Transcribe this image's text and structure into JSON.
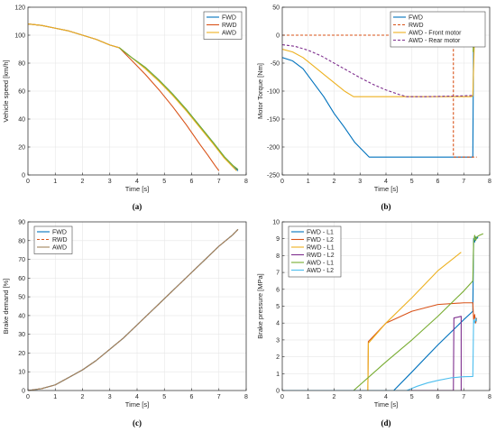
{
  "chart_data": [
    {
      "panel": "(a)",
      "type": "line",
      "xlabel": "Time [s]",
      "ylabel": "Vehicle speed [km/h]",
      "xlim": [
        0,
        8
      ],
      "ylim": [
        0,
        120
      ],
      "xticks": [
        "0",
        "1",
        "2",
        "3",
        "4",
        "5",
        "6",
        "7",
        "8"
      ],
      "yticks": [
        "0",
        "20",
        "40",
        "60",
        "80",
        "100",
        "120"
      ],
      "grid": true,
      "legend": "top-right",
      "series": [
        {
          "name": "FWD",
          "color": "#0072BD",
          "dash": false,
          "x": [
            0,
            0.5,
            1,
            1.5,
            2,
            2.5,
            3,
            3.35,
            3.8,
            4.3,
            4.8,
            5.3,
            5.8,
            6.3,
            6.8,
            7.2,
            7.5,
            7.7
          ],
          "y": [
            108,
            107,
            105,
            103,
            100,
            97,
            93,
            91,
            84,
            77,
            68,
            58,
            47,
            35,
            23,
            13,
            7,
            3
          ]
        },
        {
          "name": "RWD",
          "color": "#D95319",
          "dash": false,
          "x": [
            0,
            0.5,
            1,
            1.5,
            2,
            2.5,
            3,
            3.35,
            3.8,
            4.3,
            4.8,
            5.3,
            5.8,
            6.3,
            6.6,
            6.85,
            7.0
          ],
          "y": [
            108,
            107,
            105,
            103,
            100,
            97,
            93,
            91,
            82,
            72,
            61,
            49,
            36,
            22,
            14,
            7,
            3
          ]
        },
        {
          "name": "AWD",
          "color": "#EDB120",
          "dash": false,
          "x": [
            0,
            0.5,
            1,
            1.5,
            2,
            2.5,
            3,
            3.35,
            3.8,
            4.3,
            4.8,
            5.3,
            5.8,
            6.3,
            6.8,
            7.2,
            7.5,
            7.65
          ],
          "y": [
            108,
            107,
            105,
            103,
            100,
            97,
            93,
            91,
            84,
            76,
            67,
            57,
            46,
            34,
            22,
            12,
            6,
            3
          ]
        },
        {
          "name": "",
          "color": "#77AC30",
          "dash": false,
          "x": [
            3.35,
            3.8,
            4.3,
            4.8,
            5.3,
            5.8,
            6.3,
            6.8,
            7.2,
            7.5,
            7.7
          ],
          "y": [
            91,
            84,
            77,
            68,
            58,
            47,
            35,
            23,
            13,
            7,
            4
          ]
        }
      ]
    },
    {
      "panel": "(b)",
      "type": "line",
      "xlabel": "Time [s]",
      "ylabel": "Motor Torque [Nm]",
      "xlim": [
        0,
        8
      ],
      "ylim": [
        -250,
        50
      ],
      "xticks": [
        "0",
        "1",
        "2",
        "3",
        "4",
        "5",
        "6",
        "7",
        "8"
      ],
      "yticks": [
        "-250",
        "-200",
        "-150",
        "-100",
        "-50",
        "0",
        "50"
      ],
      "grid": true,
      "legend": "top-right",
      "series": [
        {
          "name": "FWD",
          "color": "#0072BD",
          "dash": false,
          "x": [
            0,
            0.4,
            0.8,
            1.2,
            1.6,
            2.0,
            2.4,
            2.8,
            3.35,
            4,
            5,
            6,
            7,
            7.35,
            7.38,
            7.42,
            7.46,
            7.5,
            7.55
          ],
          "y": [
            -40,
            -46,
            -60,
            -85,
            -110,
            -140,
            -165,
            -192,
            -218,
            -218,
            -218,
            -218,
            -218,
            -218,
            5,
            14,
            -4,
            10,
            2
          ]
        },
        {
          "name": "RWD",
          "color": "#D95319",
          "dash": true,
          "x": [
            0,
            1,
            2,
            3,
            4,
            5,
            6,
            6.6,
            6.6,
            7.0,
            7.5
          ],
          "y": [
            0,
            0,
            0,
            0,
            0,
            0,
            0,
            0,
            -218,
            -218,
            -218
          ]
        },
        {
          "name": "AWD - Front motor",
          "color": "#EDB120",
          "dash": false,
          "x": [
            0,
            0.4,
            0.8,
            1.2,
            1.6,
            2.0,
            2.4,
            2.75,
            3.5,
            4.5,
            5.5,
            6.5,
            7.3,
            7.35,
            7.42,
            7.5,
            7.55
          ],
          "y": [
            -25,
            -30,
            -40,
            -55,
            -70,
            -85,
            -100,
            -110,
            -110,
            -110,
            -110,
            -110,
            -110,
            -108,
            8,
            0,
            2
          ]
        },
        {
          "name": "AWD - Rear motor",
          "color": "#7E2F8E",
          "dash": true,
          "x": [
            0,
            0.5,
            1,
            1.5,
            2,
            2.5,
            3,
            3.5,
            4,
            4.5,
            4.8,
            5.5,
            6.5,
            7.35
          ],
          "y": [
            -17,
            -20,
            -27,
            -37,
            -50,
            -63,
            -76,
            -88,
            -98,
            -106,
            -110,
            -110,
            -109,
            -108
          ]
        },
        {
          "name": "",
          "color": "#77AC30",
          "dash": false,
          "x": [
            7.36,
            7.4,
            7.44,
            7.48,
            7.52,
            7.56
          ],
          "y": [
            -30,
            12,
            -5,
            8,
            -2,
            4
          ]
        }
      ]
    },
    {
      "panel": "(c)",
      "type": "line",
      "xlabel": "Time [s]",
      "ylabel": "Brake demand [%]",
      "xlim": [
        0,
        8
      ],
      "ylim": [
        0,
        90
      ],
      "xticks": [
        "0",
        "1",
        "2",
        "3",
        "4",
        "5",
        "6",
        "7",
        "8"
      ],
      "yticks": [
        "0",
        "10",
        "20",
        "30",
        "40",
        "50",
        "60",
        "70",
        "80",
        "90"
      ],
      "grid": true,
      "legend": "top-left",
      "series": [
        {
          "name": "FWD",
          "color": "#0072BD",
          "dash": false,
          "x": [
            0,
            0.5,
            1,
            1.5,
            2,
            2.5,
            3,
            3.5,
            4,
            4.5,
            5,
            5.5,
            6,
            6.5,
            7,
            7.5,
            7.7
          ],
          "y": [
            0,
            1,
            3,
            7,
            11,
            16,
            22,
            28,
            35,
            42,
            49,
            56,
            63,
            70,
            77,
            83,
            86
          ]
        },
        {
          "name": "RWD",
          "color": "#D95319",
          "dash": true,
          "x": [
            0,
            0.5,
            1,
            1.5,
            2,
            2.5,
            3,
            3.5,
            4,
            4.5,
            5,
            5.5,
            6,
            6.5,
            7,
            7.5,
            7.7
          ],
          "y": [
            0,
            1,
            3,
            7,
            11,
            16,
            22,
            28,
            35,
            42,
            49,
            56,
            63,
            70,
            77,
            83,
            86
          ]
        },
        {
          "name": "AWD",
          "color": "#A2845E",
          "dash": false,
          "x": [
            0,
            0.5,
            1,
            1.5,
            2,
            2.5,
            3,
            3.5,
            4,
            4.5,
            5,
            5.5,
            6,
            6.5,
            7,
            7.5,
            7.7
          ],
          "y": [
            0,
            1,
            3,
            7,
            11,
            16,
            22,
            28,
            35,
            42,
            49,
            56,
            63,
            70,
            77,
            83,
            86
          ]
        }
      ]
    },
    {
      "panel": "(d)",
      "type": "line",
      "xlabel": "Time [s]",
      "ylabel": "Brake pressure [MPa]",
      "xlim": [
        0,
        8
      ],
      "ylim": [
        0,
        10
      ],
      "xticks": [
        "0",
        "1",
        "2",
        "3",
        "4",
        "5",
        "6",
        "7",
        "8"
      ],
      "yticks": [
        "0",
        "1",
        "2",
        "3",
        "4",
        "5",
        "6",
        "7",
        "8",
        "9",
        "10"
      ],
      "grid": true,
      "legend": "top-left",
      "series": [
        {
          "name": "FWD - L1",
          "color": "#0072BD",
          "dash": false,
          "x": [
            0,
            4.3,
            5,
            6,
            7,
            7.35,
            7.38,
            7.42,
            7.46,
            7.5,
            7.55
          ],
          "y": [
            0,
            0,
            1.1,
            2.7,
            4.2,
            4.7,
            9.0,
            8.8,
            9.1,
            9.0,
            9.1
          ]
        },
        {
          "name": "FWD - L2",
          "color": "#D95319",
          "dash": false,
          "x": [
            0,
            3.3,
            3.32,
            4,
            5,
            6,
            7,
            7.35,
            7.38,
            7.42,
            7.46,
            7.5
          ],
          "y": [
            0,
            0,
            2.9,
            4.0,
            4.7,
            5.1,
            5.2,
            5.2,
            4.2,
            4.5,
            4.0,
            4.3
          ]
        },
        {
          "name": "RWD - L1",
          "color": "#EDB120",
          "dash": false,
          "x": [
            0,
            3.3,
            3.32,
            4,
            5,
            6,
            6.9
          ],
          "y": [
            0,
            0,
            2.8,
            4.0,
            5.5,
            7.1,
            8.2
          ]
        },
        {
          "name": "RWD - L2",
          "color": "#7E2F8E",
          "dash": false,
          "x": [
            0,
            6.6,
            6.62,
            6.9,
            6.9
          ],
          "y": [
            0,
            0,
            4.3,
            4.4,
            0
          ]
        },
        {
          "name": "AWD - L1",
          "color": "#77AC30",
          "dash": false,
          "x": [
            0,
            2.75,
            4,
            5,
            6,
            7,
            7.35,
            7.38,
            7.42,
            7.46,
            7.5,
            7.6,
            7.75
          ],
          "y": [
            0,
            0,
            1.7,
            3.0,
            4.4,
            5.9,
            6.5,
            8.8,
            9.2,
            8.9,
            9.1,
            9.2,
            9.3
          ]
        },
        {
          "name": "AWD - L2",
          "color": "#4DBEEE",
          "dash": false,
          "x": [
            0,
            4.8,
            5.2,
            5.6,
            6,
            6.5,
            7,
            7.35,
            7.38,
            7.42,
            7.46,
            7.5
          ],
          "y": [
            0,
            0,
            0.25,
            0.45,
            0.6,
            0.75,
            0.82,
            0.83,
            4.2,
            4.0,
            4.3,
            4.1
          ]
        }
      ]
    }
  ]
}
